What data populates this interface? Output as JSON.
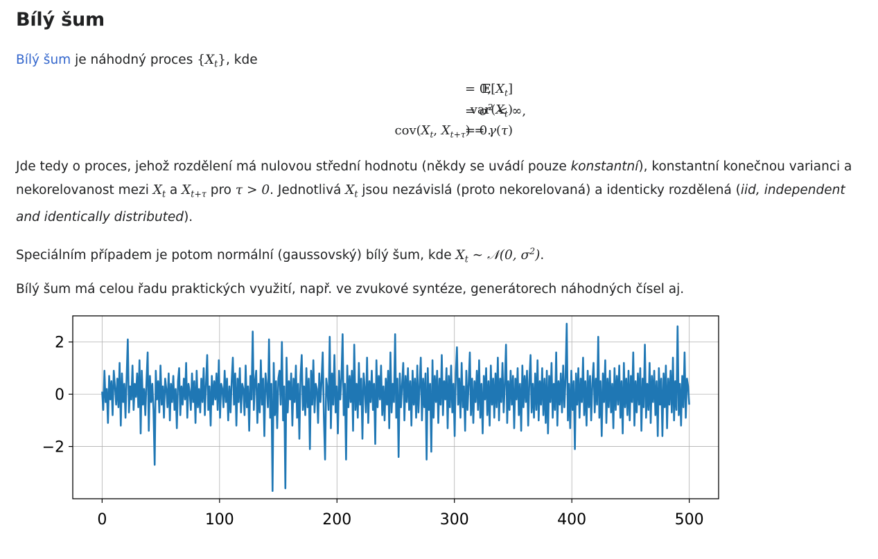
{
  "title": "Bílý šum",
  "intro": {
    "link_text": "Bílý šum",
    "text_before_math": " je náhodný proces ",
    "math": "{Xt}",
    "text_after_math": ", kde"
  },
  "equations": [
    {
      "lhs": "𝔼[Xt]",
      "rhs": "= 0,"
    },
    {
      "lhs": "var(Xt)",
      "rhs": "= σ² < ∞,"
    },
    {
      "lhs": "cov(Xt, Xt+τ) = γ(τ)",
      "rhs": "= 0."
    }
  ],
  "para1": {
    "t1": "Jde tedy o proces, jehož rozdělení má nulovou střední hodnotu (někdy se uvádí pouze ",
    "t1_italic": "konstantní",
    "t2": "), konstantní konečnou varianci a",
    "t3": "nekorelovanost mezi ",
    "m1": "X",
    "m1_sub": "t",
    "t4": " a ",
    "m2": "X",
    "m2_sub": "t+τ",
    "t5": " pro ",
    "m3": "τ > 0",
    "t6": ". Jednotlivá ",
    "m4": "X",
    "m4_sub": "t",
    "t7": " jsou nezávislá (proto nekorelovaná) a identicky rozdělená (",
    "t7_italic": "iid, independent",
    "t8_italic": "and identically distributed",
    "t9": ")."
  },
  "para2": {
    "t1": "Speciálním případem je potom normální (gaussovský) bílý šum, kde ",
    "m1": "X",
    "m1_sub": "t",
    "m2": " ∼ 𝒩(0, σ",
    "m2_sup": "2",
    "m3": ")",
    "t2": "."
  },
  "para3": "Bílý šum má celou řadu praktických využití, např. ve zvukové syntéze, generátorech náhodných čísel aj.",
  "chart_data": {
    "type": "line",
    "line_color": "#1f77b4",
    "grid": true,
    "xlim": [
      -25,
      525
    ],
    "ylim": [
      -4,
      3
    ],
    "xticks": [
      0,
      100,
      200,
      300,
      400,
      500
    ],
    "yticks": [
      -2,
      0,
      2
    ],
    "ytick_labels": [
      "−2",
      "0",
      "2"
    ],
    "series": [
      {
        "values": [
          0.1,
          -0.6,
          0.9,
          -0.3,
          0.2,
          -1.1,
          0.7,
          -0.2,
          0.5,
          -0.8,
          0.9,
          0.3,
          -0.4,
          0.6,
          -0.5,
          1.2,
          -1.2,
          0.8,
          -0.3,
          0.4,
          -0.9,
          0.6,
          2.1,
          -0.7,
          0.3,
          -0.2,
          1.1,
          -0.6,
          0.4,
          -0.1,
          0.8,
          -0.5,
          1.3,
          -1.5,
          0.9,
          -0.4,
          0.2,
          -0.8,
          0.5,
          1.6,
          -1.4,
          0.7,
          -0.3,
          0.4,
          -0.6,
          -2.7,
          0.9,
          -0.2,
          0.5,
          -0.7,
          1.1,
          -0.4,
          0.3,
          -0.9,
          0.6,
          0.2,
          -0.5,
          0.8,
          -1.0,
          0.4,
          -0.3,
          0.7,
          -0.6,
          0.2,
          -1.3,
          0.5,
          1.0,
          -0.8,
          0.3,
          -0.4,
          0.6,
          -0.2,
          1.2,
          -0.9,
          0.4,
          0.1,
          -0.6,
          0.8,
          -0.3,
          0.5,
          -1.1,
          0.9,
          -0.5,
          0.2,
          -0.7,
          0.6,
          -0.3,
          1.0,
          -0.8,
          0.4,
          1.5,
          -0.6,
          0.3,
          -1.2,
          0.7,
          -0.4,
          0.5,
          -0.2,
          0.8,
          -0.6,
          1.3,
          -0.9,
          0.4,
          0.2,
          -0.5,
          0.9,
          -0.3,
          0.6,
          -1.0,
          0.3,
          -0.7,
          0.5,
          1.4,
          -0.4,
          0.8,
          -1.2,
          0.6,
          -0.3,
          1.0,
          -0.7,
          0.4,
          0.2,
          -0.8,
          1.1,
          -0.5,
          0.3,
          -1.4,
          0.7,
          -0.2,
          2.4,
          -0.6,
          0.5,
          0.9,
          -1.1,
          0.4,
          -0.7,
          1.3,
          -0.4,
          0.6,
          -1.6,
          0.8,
          0.3,
          -0.5,
          2.1,
          -0.9,
          0.4,
          -3.7,
          1.2,
          -0.8,
          0.5,
          -1.3,
          0.6,
          0.9,
          -0.4,
          2.0,
          -1.0,
          0.3,
          -3.6,
          1.4,
          -0.7,
          0.5,
          -0.2,
          0.8,
          -1.2,
          0.6,
          -0.3,
          1.1,
          -0.9,
          0.4,
          -1.7,
          0.7,
          1.5,
          -0.6,
          0.3,
          -0.8,
          1.0,
          -0.5,
          0.6,
          -2.1,
          0.9,
          -0.4,
          1.3,
          -0.7,
          0.4,
          0.2,
          -1.1,
          0.8,
          -0.3,
          0.5,
          1.6,
          -0.9,
          -2.5,
          0.6,
          0.2,
          -0.6,
          2.2,
          -1.3,
          0.8,
          -0.4,
          1.5,
          -0.7,
          0.3,
          -1.5,
          0.9,
          -0.2,
          0.6,
          2.3,
          -0.8,
          0.4,
          -2.5,
          1.1,
          -0.5,
          0.7,
          -0.3,
          0.9,
          -1.4,
          1.9,
          -0.6,
          0.4,
          -0.9,
          1.2,
          -0.4,
          0.6,
          -1.7,
          0.8,
          0.2,
          -0.7,
          1.4,
          -1.1,
          0.5,
          -0.3,
          0.9,
          -0.6,
          0.4,
          -1.9,
          1.3,
          -0.5,
          0.7,
          -0.2,
          1.1,
          -0.8,
          0.3,
          -1.0,
          0.6,
          -0.4,
          0.9,
          -1.3,
          1.6,
          -0.7,
          0.4,
          -0.3,
          2.3,
          -0.9,
          0.6,
          -2.4,
          0.8,
          -0.5,
          0.4,
          1.2,
          -1.0,
          0.7,
          -0.3,
          1.0,
          -0.6,
          0.5,
          -1.2,
          0.9,
          -0.4,
          0.6,
          -0.9,
          1.1,
          -0.7,
          0.3,
          1.4,
          -1.0,
          0.6,
          -0.5,
          0.8,
          -2.5,
          1.0,
          -0.6,
          0.4,
          -2.2,
          1.3,
          -0.9,
          0.7,
          -0.3,
          0.9,
          -1.1,
          0.6,
          -0.4,
          1.5,
          -0.8,
          0.5,
          -0.2,
          1.0,
          -1.3,
          0.7,
          -0.5,
          1.1,
          -0.7,
          0.4,
          -1.6,
          0.8,
          1.8,
          -0.4,
          0.6,
          -0.9,
          1.2,
          -0.5,
          0.3,
          -1.4,
          0.9,
          -0.6,
          0.4,
          1.6,
          -0.8,
          0.6,
          -1.1,
          0.5,
          -0.3,
          0.9,
          -0.6,
          1.3,
          -0.9,
          0.4,
          -1.5,
          0.7,
          -0.2,
          1.0,
          -0.8,
          0.5,
          -1.2,
          1.1,
          -0.4,
          0.6,
          -0.9,
          0.8,
          -0.5,
          1.4,
          -1.0,
          0.6,
          -0.3,
          1.2,
          -0.7,
          0.4,
          1.9,
          -1.1,
          0.5,
          -0.6,
          0.9,
          -0.4,
          0.7,
          -1.3,
          0.6,
          -0.2,
          1.0,
          -0.8,
          0.4,
          -1.4,
          1.1,
          -0.5,
          0.7,
          -0.3,
          0.9,
          -1.2,
          0.5,
          1.5,
          -0.7,
          0.4,
          -0.9,
          0.8,
          -0.6,
          1.3,
          -1.0,
          0.5,
          -0.4,
          1.0,
          -0.8,
          0.6,
          -1.1,
          0.9,
          -1.5,
          0.7,
          -0.3,
          1.2,
          -0.9,
          0.4,
          -0.6,
          1.6,
          -1.2,
          0.5,
          -0.4,
          0.8,
          -0.7,
          1.1,
          -0.5,
          0.6,
          2.7,
          -1.0,
          0.4,
          -1.3,
          0.9,
          -0.6,
          0.5,
          -2.1,
          0.8,
          -0.4,
          1.0,
          -0.9,
          0.6,
          -0.3,
          1.4,
          -0.8,
          0.5,
          -1.2,
          0.9,
          -0.5,
          0.7,
          -1.0,
          0.4,
          1.2,
          -0.7,
          0.6,
          -0.4,
          2.2,
          -0.9,
          0.5,
          -1.6,
          0.8,
          -0.3,
          1.3,
          -1.1,
          0.6,
          -0.5,
          0.9,
          -0.7,
          0.4,
          -1.3,
          1.0,
          -0.6,
          0.7,
          -0.4,
          1.1,
          -0.9,
          0.5,
          -1.5,
          1.2,
          -0.5,
          0.6,
          -0.8,
          0.9,
          -1.0,
          0.7,
          -0.3,
          1.6,
          -1.2,
          0.5,
          -0.7,
          0.8,
          -0.4,
          1.0,
          -1.4,
          0.6,
          -0.5,
          1.9,
          -0.9,
          0.4,
          -0.6,
          1.2,
          -1.1,
          0.7,
          -0.3,
          0.9,
          -0.8,
          0.5,
          -1.6,
          1.0,
          -0.4,
          0.6,
          -1.6,
          0.8,
          -0.5,
          1.1,
          -1.3,
          0.6,
          -0.4,
          0.9,
          -0.7,
          1.4,
          -1.0,
          0.5,
          -0.6,
          2.6,
          -0.8,
          0.4,
          -1.2,
          0.7,
          -0.5,
          1.6,
          -0.9,
          0.6,
          0.3,
          -0.4
        ]
      }
    ]
  }
}
